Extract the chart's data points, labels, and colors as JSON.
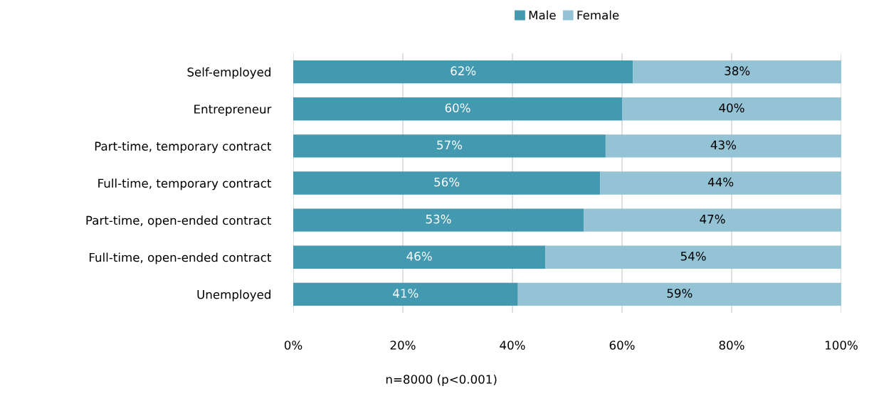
{
  "chart_data": {
    "type": "bar",
    "orientation": "horizontal",
    "stacked": true,
    "categories": [
      "Self-employed",
      "Entrepreneur",
      "Part-time, temporary contract",
      "Full-time, temporary contract",
      "Part-time, open-ended contract",
      "Full-time, open-ended contract",
      "Unemployed"
    ],
    "series": [
      {
        "name": "Male",
        "color": "#4399b0",
        "values": [
          62,
          60,
          57,
          56,
          53,
          46,
          41
        ]
      },
      {
        "name": "Female",
        "color": "#93c3d5",
        "values": [
          38,
          40,
          43,
          44,
          47,
          54,
          59
        ]
      }
    ],
    "xlim": [
      0,
      100
    ],
    "xticks": [
      {
        "value": 0,
        "label": "0%"
      },
      {
        "value": 20,
        "label": "20%"
      },
      {
        "value": 40,
        "label": "40%"
      },
      {
        "value": 60,
        "label": "60%"
      },
      {
        "value": 80,
        "label": "80%"
      },
      {
        "value": 100,
        "label": "100%"
      }
    ],
    "value_labels": [
      [
        "62%",
        "60%",
        "57%",
        "56%",
        "53%",
        "46%",
        "41%"
      ],
      [
        "38%",
        "40%",
        "43%",
        "44%",
        "47%",
        "54%",
        "59%"
      ]
    ],
    "grid": "x",
    "legend": "top",
    "annotations": [
      "n=8000 (p<0.001)"
    ]
  }
}
